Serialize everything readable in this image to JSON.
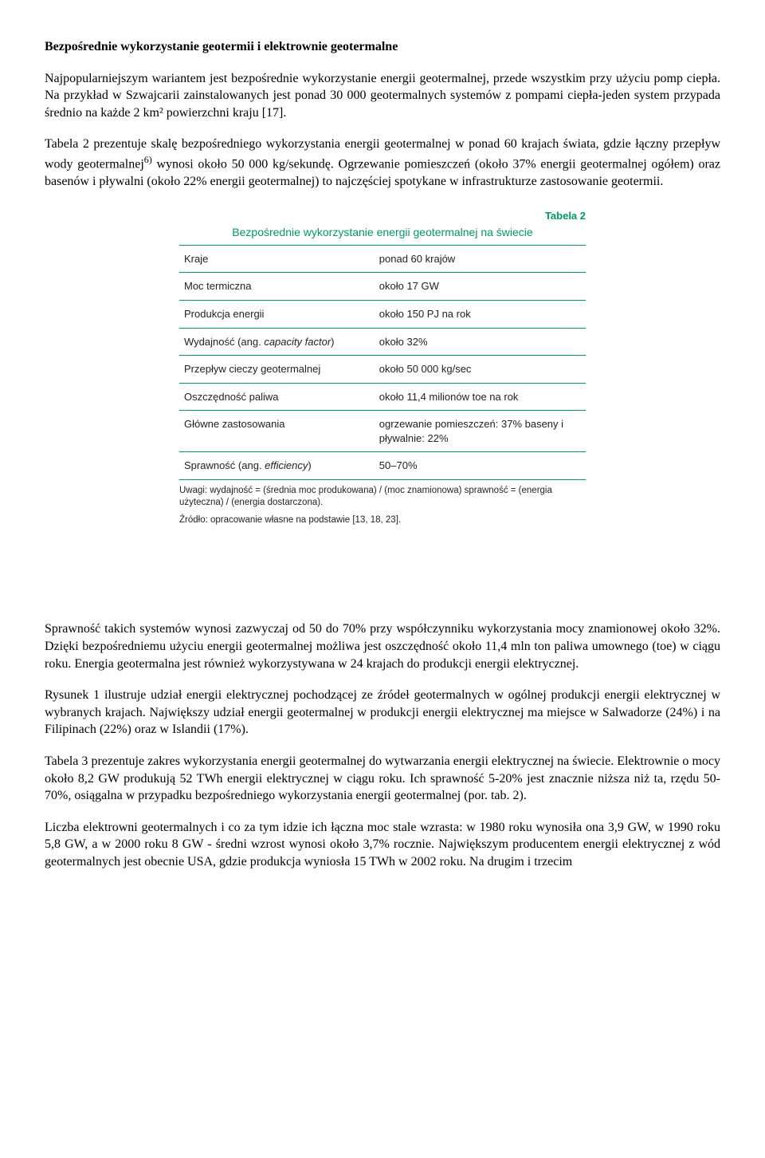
{
  "heading": "Bezpośrednie wykorzystanie geotermii i elektrownie geotermalne",
  "paragraphs": {
    "p1": "Najpopularniejszym wariantem jest bezpośrednie wykorzystanie energii geotermalnej, przede wszystkim przy użyciu pomp ciepła. Na przykład w Szwajcarii zainstalowanych jest ponad 30 000 geotermalnych systemów z pompami ciepła-jeden system przypada średnio na każde 2 km² powierzchni kraju [17].",
    "p2a": "Tabela 2 prezentuje skalę bezpośredniego wykorzystania energii geotermalnej w ponad 60 krajach świata, gdzie łączny przepływ wody geotermalnej",
    "p2b": " wynosi około 50 000 kg/sekundę. Ogrzewanie pomieszczeń (około 37% energii geotermalnej ogółem) oraz basenów i pływalni (około 22% energii geotermalnej) to najczęściej spotykane w infrastrukturze zastosowanie geotermii.",
    "p2_sup": "6)",
    "p3": "Sprawność takich systemów wynosi zazwyczaj od 50 do 70% przy współczynniku wykorzystania mocy znamionowej około 32%. Dzięki bezpośredniemu użyciu energii geotermalnej możliwa jest oszczędność około 11,4 mln ton paliwa umownego (toe) w ciągu roku. Energia geotermalna jest również wykorzystywana w 24 krajach do produkcji energii elektrycznej.",
    "p4": "Rysunek 1 ilustruje udział energii elektrycznej pochodzącej ze źródeł geotermalnych w ogólnej produkcji energii elektrycznej w wybranych krajach. Największy udział energii geotermalnej w produkcji energii elektrycznej ma miejsce w Salwadorze (24%) i na Filipinach (22%) oraz w Islandii (17%).",
    "p5": "Tabela 3 prezentuje zakres wykorzystania energii geotermalnej do wytwarzania energii elektrycznej na świecie. Elektrownie o mocy około 8,2 GW produkują 52 TWh energii elektrycznej w ciągu roku. Ich sprawność 5-20% jest znacznie niższa niż ta, rzędu 50-70%, osiągalna w przypadku bezpośredniego wykorzystania energii geotermalnej (por. tab. 2).",
    "p6": "Liczba elektrowni geotermalnych i co za tym idzie ich łączna moc stale wzrasta: w 1980 roku wynosiła ona 3,9 GW, w 1990 roku 5,8 GW, a w 2000 roku 8 GW - średni wzrost wynosi około 3,7% rocznie. Największym producentem energii elektrycznej z wód geotermalnych jest obecnie USA, gdzie produkcja wyniosła 15 TWh w 2002 roku. Na drugim i trzecim"
  },
  "table": {
    "label": "Tabela 2",
    "title": "Bezpośrednie wykorzystanie energii geotermalnej na świecie",
    "border_color": "#009966",
    "header_color": "#009966",
    "font_family": "Arial, Helvetica, sans-serif",
    "font_size_pt": 10,
    "col_widths": [
      "48%",
      "52%"
    ],
    "rows": [
      {
        "k": "Kraje",
        "v": "ponad 60 krajów"
      },
      {
        "k": "Moc termiczna",
        "v": "około 17 GW"
      },
      {
        "k": "Produkcja energii",
        "v": "około 150 PJ na rok"
      },
      {
        "k_pre": "Wydajność (ang. ",
        "k_it": "capacity factor",
        "k_post": ")",
        "v": "około 32%"
      },
      {
        "k": "Przepływ cieczy geotermalnej",
        "v": "około 50 000 kg/sec"
      },
      {
        "k": "Oszczędność paliwa",
        "v": "około 11,4 milionów toe na rok"
      },
      {
        "k": "Główne zastosowania",
        "v": "ogrzewanie pomieszczeń: 37% baseny i pływalnie: 22%"
      },
      {
        "k_pre": "Sprawność (ang. ",
        "k_it": "efficiency",
        "k_post": ")",
        "v": "50–70%"
      }
    ],
    "footnote1": "Uwagi: wydajność = (średnia moc produkowana) / (moc znamionowa) sprawność = (energia użyteczna) / (energia dostarczona).",
    "footnote2": "Źródło: opracowanie własne na podstawie [13, 18, 23]."
  }
}
